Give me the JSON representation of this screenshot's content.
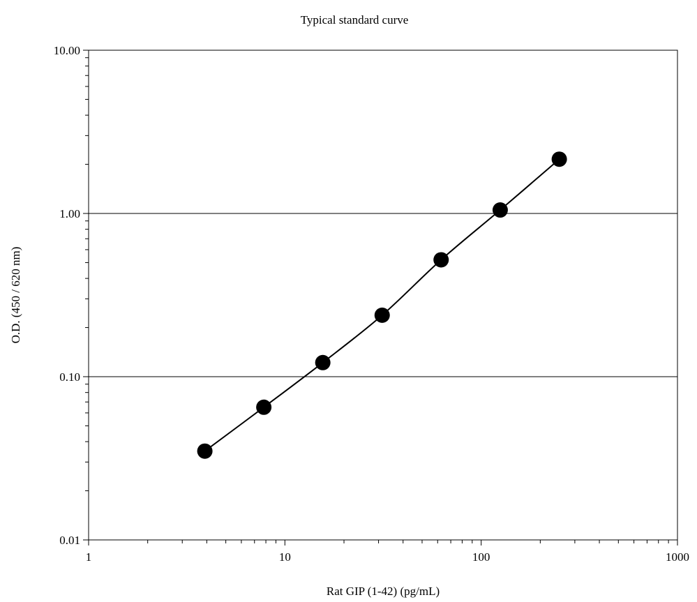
{
  "chart_data": {
    "type": "scatter",
    "title": "Typical standard curve",
    "xlabel": "Rat GIP (1-42) (pg/mL)",
    "ylabel": "O.D. (450 / 620 nm)",
    "x_scale": "log",
    "y_scale": "log",
    "xlim": [
      1,
      1000
    ],
    "ylim": [
      0.01,
      10
    ],
    "x_ticks": [
      {
        "value": 1,
        "label": "1"
      },
      {
        "value": 10,
        "label": "10"
      },
      {
        "value": 100,
        "label": "100"
      },
      {
        "value": 1000,
        "label": "1000"
      }
    ],
    "y_ticks": [
      {
        "value": 0.01,
        "label": "0.01"
      },
      {
        "value": 0.1,
        "label": "0.10"
      },
      {
        "value": 1,
        "label": "1.00"
      },
      {
        "value": 10,
        "label": "10.00"
      }
    ],
    "grid": "horizontal major lines",
    "legend": "none",
    "series": [
      {
        "x": [
          3.91,
          7.81,
          15.6,
          31.3,
          62.5,
          125,
          250
        ],
        "y": [
          0.035,
          0.065,
          0.122,
          0.238,
          0.52,
          1.05,
          2.15
        ],
        "marker": "filled-circle",
        "line": "smooth",
        "color": "#000000"
      }
    ]
  }
}
